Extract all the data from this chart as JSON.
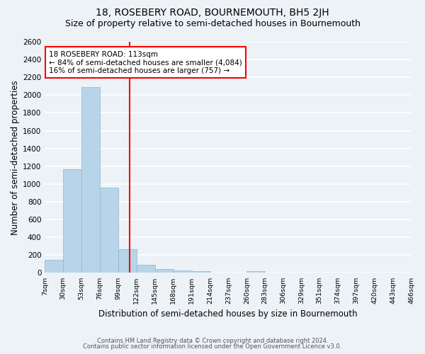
{
  "title": "18, ROSEBERY ROAD, BOURNEMOUTH, BH5 2JH",
  "subtitle": "Size of property relative to semi-detached houses in Bournemouth",
  "xlabel": "Distribution of semi-detached houses by size in Bournemouth",
  "ylabel": "Number of semi-detached properties",
  "footnote1": "Contains HM Land Registry data © Crown copyright and database right 2024.",
  "footnote2": "Contains public sector information licensed under the Open Government Licence v3.0.",
  "bin_edges": [
    7,
    30,
    53,
    76,
    99,
    122,
    145,
    168,
    191,
    214,
    237,
    260,
    283,
    306,
    329,
    351,
    374,
    397,
    420,
    443,
    466
  ],
  "bin_labels": [
    "7sqm",
    "30sqm",
    "53sqm",
    "76sqm",
    "99sqm",
    "122sqm",
    "145sqm",
    "168sqm",
    "191sqm",
    "214sqm",
    "237sqm",
    "260sqm",
    "283sqm",
    "306sqm",
    "329sqm",
    "351sqm",
    "374sqm",
    "397sqm",
    "420sqm",
    "443sqm",
    "466sqm"
  ],
  "bar_heights": [
    150,
    1170,
    2090,
    960,
    270,
    95,
    40,
    30,
    20,
    0,
    0,
    20,
    0,
    0,
    0,
    0,
    0,
    0,
    0,
    0
  ],
  "bar_color": "#b8d4e8",
  "bar_edgecolor": "#8ab8d0",
  "property_line_x": 113,
  "property_line_color": "red",
  "annotation_title": "18 ROSEBERY ROAD: 113sqm",
  "annotation_line1": "← 84% of semi-detached houses are smaller (4,084)",
  "annotation_line2": "16% of semi-detached houses are larger (757) →",
  "annotation_box_color": "white",
  "annotation_box_edgecolor": "red",
  "ylim": [
    0,
    2600
  ],
  "yticks": [
    0,
    200,
    400,
    600,
    800,
    1000,
    1200,
    1400,
    1600,
    1800,
    2000,
    2200,
    2400,
    2600
  ],
  "background_color": "#edf2f7",
  "grid_color": "white",
  "title_fontsize": 10,
  "subtitle_fontsize": 9,
  "axis_label_fontsize": 8.5
}
